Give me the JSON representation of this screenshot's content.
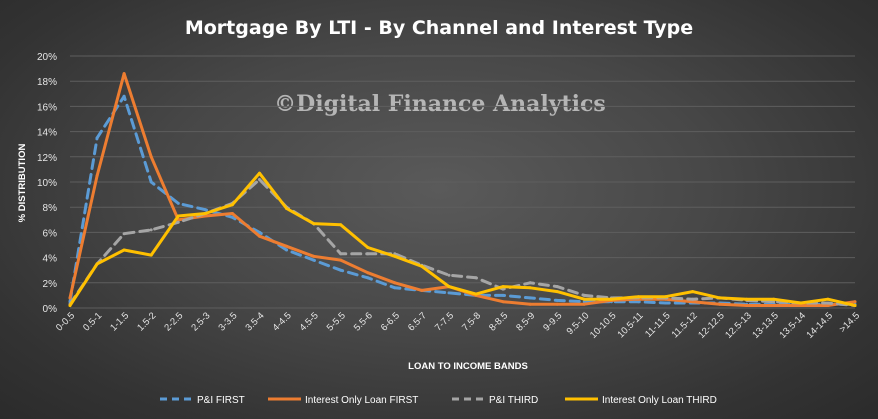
{
  "chart_data": {
    "type": "line",
    "title": "Mortgage By LTI - By Channel and Interest Type",
    "watermark": "©Digital Finance Analytics",
    "xlabel": "LOAN TO INCOME BANDS",
    "ylabel": "% DISTRIBUTION",
    "ylim": [
      0,
      20
    ],
    "yticks": [
      "0%",
      "2%",
      "4%",
      "6%",
      "8%",
      "10%",
      "12%",
      "14%",
      "16%",
      "18%",
      "20%"
    ],
    "grid": true,
    "legend_position": "bottom",
    "categories": [
      "0-0.5",
      "0.5-1",
      "1-1.5",
      "1.5-2",
      "2-2.5",
      "2.5-3",
      "3-3.5",
      "3.5-4",
      "4-4.5",
      "4.5-5",
      "5-5.5",
      "5.5-6",
      "6-6.5",
      "6.5-7",
      "7-7.5",
      "7.5-8",
      "8-8.5",
      "8.5-9",
      "9-9.5",
      "9.5-10",
      "10-10.5",
      "10.5-11",
      "11-11.5",
      "11.5-12",
      "12-12.5",
      "12.5-13",
      "13-13.5",
      "13.5-14",
      "14-14.5",
      ">14.5"
    ],
    "series": [
      {
        "name": "P&I FIRST",
        "color": "#5b9bd5",
        "dash": true,
        "values": [
          0.5,
          13.5,
          16.8,
          10.0,
          8.3,
          7.8,
          7.2,
          6.0,
          4.6,
          3.8,
          3.0,
          2.4,
          1.6,
          1.4,
          1.2,
          1.0,
          1.0,
          0.8,
          0.6,
          0.5,
          0.5,
          0.5,
          0.4,
          0.4,
          0.4,
          0.3,
          0.3,
          0.3,
          0.3,
          0.3
        ]
      },
      {
        "name": "Interest Only Loan FIRST",
        "color": "#ed7d31",
        "dash": false,
        "values": [
          0.8,
          10.5,
          18.6,
          12.0,
          7.0,
          7.3,
          7.5,
          5.7,
          4.9,
          4.1,
          3.8,
          2.8,
          2.0,
          1.4,
          1.7,
          1.0,
          0.5,
          0.3,
          0.3,
          0.3,
          0.6,
          0.7,
          0.7,
          0.5,
          0.3,
          0.2,
          0.2,
          0.2,
          0.2,
          0.5
        ]
      },
      {
        "name": "P&I THIRD",
        "color": "#a5a5a5",
        "dash": true,
        "values": [
          0.3,
          3.5,
          5.9,
          6.2,
          6.8,
          7.5,
          8.3,
          10.2,
          8.0,
          6.7,
          4.3,
          4.3,
          4.3,
          3.4,
          2.6,
          2.4,
          1.5,
          2.0,
          1.7,
          1.0,
          0.8,
          0.8,
          0.8,
          0.7,
          0.8,
          0.6,
          0.5,
          0.4,
          0.4,
          0.2
        ]
      },
      {
        "name": "Interest Only Loan THIRD",
        "color": "#ffc000",
        "dash": false,
        "values": [
          0.2,
          3.5,
          4.6,
          4.2,
          7.3,
          7.5,
          8.2,
          10.7,
          7.9,
          6.7,
          6.6,
          4.8,
          4.1,
          3.3,
          1.7,
          1.1,
          1.7,
          1.6,
          1.3,
          0.7,
          0.7,
          0.9,
          0.9,
          1.3,
          0.8,
          0.7,
          0.7,
          0.4,
          0.7,
          0.2
        ]
      }
    ]
  }
}
